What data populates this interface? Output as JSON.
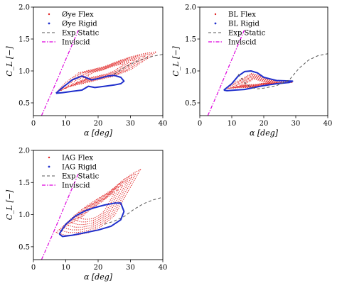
{
  "chart_data": [
    {
      "type": "line",
      "xlabel": "α [deg]",
      "ylabel": "C_L [−]",
      "xlim": [
        0,
        40
      ],
      "ylim": [
        0.3,
        2.0
      ],
      "xticks": [
        0,
        10,
        20,
        30,
        40
      ],
      "yticks": [
        0.5,
        1.0,
        1.5,
        2.0
      ],
      "legend": "top-left",
      "grid": false,
      "series": [
        {
          "name": "Øye Flex",
          "color": "#e02020",
          "style": "dotted-loops",
          "x": [
            7,
            10,
            14,
            18,
            22,
            26,
            30,
            34,
            38,
            36,
            30,
            25,
            20,
            15,
            10,
            7
          ],
          "y": [
            0.66,
            0.82,
            0.97,
            1.02,
            1.07,
            1.15,
            1.22,
            1.27,
            1.3,
            1.22,
            1.02,
            0.92,
            0.86,
            0.8,
            0.74,
            0.66
          ]
        },
        {
          "name": "Øye Rigid",
          "color": "#1f2fcc",
          "style": "solid",
          "x": [
            7,
            9,
            12,
            15,
            18,
            20,
            23,
            25,
            27,
            28,
            27,
            25,
            22,
            19,
            17,
            15,
            12,
            9,
            7
          ],
          "y": [
            0.65,
            0.74,
            0.86,
            0.92,
            0.86,
            0.88,
            0.92,
            0.93,
            0.9,
            0.84,
            0.8,
            0.78,
            0.76,
            0.74,
            0.76,
            0.7,
            0.68,
            0.66,
            0.65
          ]
        },
        {
          "name": "Exp Static",
          "color": "#555555",
          "style": "dashed",
          "x": [
            25,
            28,
            31,
            34,
            37,
            40
          ],
          "y": [
            0.95,
            1.05,
            1.13,
            1.19,
            1.23,
            1.26
          ]
        },
        {
          "name": "Inviscid",
          "color": "#dd00dd",
          "style": "dash-dot",
          "x": [
            2.5,
            6,
            10,
            14
          ],
          "y": [
            0.3,
            0.7,
            1.18,
            1.65
          ]
        }
      ]
    },
    {
      "type": "line",
      "xlabel": "α [deg]",
      "ylabel": "C_L [−]",
      "xlim": [
        0,
        40
      ],
      "ylim": [
        0.3,
        2.0
      ],
      "xticks": [
        0,
        10,
        20,
        30,
        40
      ],
      "yticks": [
        0.5,
        1.0,
        1.5,
        2.0
      ],
      "legend": "top-right",
      "grid": false,
      "series": [
        {
          "name": "BL Flex",
          "color": "#e02020",
          "style": "dotted-loops",
          "x": [
            8,
            11,
            14,
            16,
            18,
            20,
            23,
            27,
            29,
            26,
            22,
            19,
            16,
            13,
            10,
            8
          ],
          "y": [
            0.72,
            0.82,
            0.9,
            0.96,
            0.94,
            0.9,
            0.86,
            0.84,
            0.82,
            0.81,
            0.79,
            0.76,
            0.74,
            0.74,
            0.73,
            0.72
          ]
        },
        {
          "name": "BL Rigid",
          "color": "#1f2fcc",
          "style": "solid",
          "x": [
            7.5,
            10,
            12,
            14,
            16,
            18,
            20,
            24,
            29,
            28,
            24,
            20,
            17,
            14,
            11,
            8.5,
            7.5
          ],
          "y": [
            0.7,
            0.8,
            0.92,
            0.99,
            1.0,
            0.97,
            0.9,
            0.85,
            0.84,
            0.82,
            0.8,
            0.77,
            0.74,
            0.71,
            0.7,
            0.69,
            0.7
          ]
        },
        {
          "name": "Exp Static",
          "color": "#555555",
          "style": "dashed",
          "x": [
            12,
            14,
            16,
            18,
            20,
            24,
            28,
            31,
            34,
            37,
            40
          ],
          "y": [
            0.95,
            0.82,
            0.74,
            0.72,
            0.73,
            0.77,
            0.86,
            1.04,
            1.17,
            1.24,
            1.27
          ]
        },
        {
          "name": "Inviscid",
          "color": "#dd00dd",
          "style": "dash-dot",
          "x": [
            2.5,
            6,
            10,
            14
          ],
          "y": [
            0.3,
            0.7,
            1.18,
            1.65
          ]
        }
      ]
    },
    {
      "type": "line",
      "xlabel": "α [deg]",
      "ylabel": "C_L [−]",
      "xlim": [
        0,
        40
      ],
      "ylim": [
        0.3,
        2.0
      ],
      "xticks": [
        0,
        10,
        20,
        30,
        40
      ],
      "yticks": [
        0.5,
        1.0,
        1.5,
        2.0
      ],
      "legend": "top-left",
      "grid": false,
      "series": [
        {
          "name": "IAG Flex",
          "color": "#e02020",
          "style": "dotted-loops",
          "x": [
            7,
            10,
            13,
            16,
            20,
            24,
            28,
            31,
            33,
            31,
            28,
            25,
            21,
            17,
            13,
            10,
            7
          ],
          "y": [
            0.72,
            0.86,
            1.0,
            1.12,
            1.25,
            1.38,
            1.55,
            1.65,
            1.7,
            1.52,
            1.25,
            0.98,
            0.82,
            0.72,
            0.68,
            0.68,
            0.72
          ]
        },
        {
          "name": "IAG Rigid",
          "color": "#1f2fcc",
          "style": "solid",
          "x": [
            8,
            10,
            13,
            16,
            19,
            22,
            25,
            27,
            28,
            27,
            24,
            20,
            16,
            12,
            9,
            8
          ],
          "y": [
            0.7,
            0.85,
            0.98,
            1.06,
            1.11,
            1.15,
            1.18,
            1.18,
            1.05,
            0.92,
            0.82,
            0.76,
            0.72,
            0.68,
            0.66,
            0.7
          ]
        },
        {
          "name": "Exp Static",
          "color": "#555555",
          "style": "dashed",
          "x": [
            22,
            25,
            28,
            31,
            34,
            37,
            40
          ],
          "y": [
            0.85,
            0.9,
            0.97,
            1.08,
            1.17,
            1.23,
            1.27
          ]
        },
        {
          "name": "Inviscid",
          "color": "#dd00dd",
          "style": "dash-dot",
          "x": [
            2.5,
            6,
            10,
            14
          ],
          "y": [
            0.3,
            0.7,
            1.18,
            1.65
          ]
        }
      ]
    }
  ]
}
